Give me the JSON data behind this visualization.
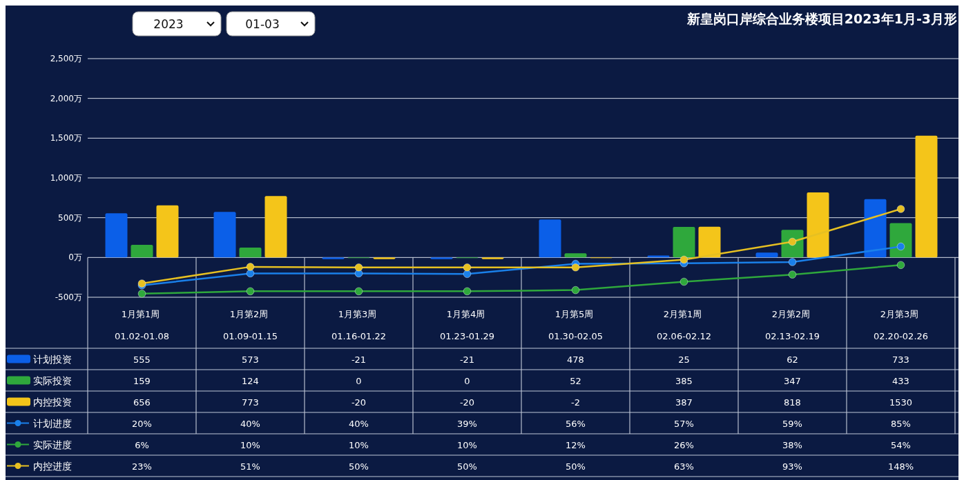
{
  "chart_data": {
    "type": "bar",
    "title": "新皇岗口岸综合业务楼项目2023年1月-3月形",
    "annotations": [
      "2023",
      "01-03"
    ],
    "categories": [
      "1月第1周\n01.02-01.08",
      "1月第2周\n01.09-01.15",
      "1月第3周\n01.16-01.22",
      "1月第4周\n01.23-01.29",
      "1月第5周\n01.30-02.05",
      "2月第1周\n02.06-02.12",
      "2月第2周\n02.13-02.19",
      "2月第3周\n02.20-02.26"
    ],
    "series": [
      {
        "name": "计划投资",
        "color": "#0b5fe8",
        "values": [
          555,
          573,
          -21,
          -21,
          478,
          25,
          62,
          733
        ],
        "value_labels": [
          "555",
          "573",
          "-21",
          "-21",
          "478",
          "25",
          "62",
          "733"
        ]
      },
      {
        "name": "实际投资",
        "color": "#2fa83c",
        "values": [
          159,
          124,
          0,
          0,
          52,
          385,
          347,
          433
        ],
        "value_labels": [
          "159",
          "124",
          "0",
          "0",
          "52",
          "385",
          "347",
          "433"
        ]
      },
      {
        "name": "内控投资",
        "color": "#f4c51a",
        "values": [
          656,
          773,
          -20,
          -20,
          -2,
          387,
          818,
          1530
        ],
        "value_labels": [
          "656",
          "773",
          "-20",
          "-20",
          "-2",
          "387",
          "818",
          "1530"
        ]
      },
      {
        "name": "计划进度",
        "type": "line",
        "axis": "y2",
        "color": "#1a80ea",
        "values": [
          20,
          40,
          40,
          39,
          56,
          57,
          59,
          85
        ],
        "value_labels": [
          "20%",
          "40%",
          "40%",
          "39%",
          "56%",
          "57%",
          "59%",
          "85%"
        ]
      },
      {
        "name": "实际进度",
        "type": "line",
        "axis": "y2",
        "color": "#2fa83c",
        "values": [
          6,
          10,
          10,
          10,
          12,
          26,
          38,
          54
        ],
        "value_labels": [
          "6%",
          "10%",
          "10%",
          "10%",
          "12%",
          "26%",
          "38%",
          "54%"
        ]
      },
      {
        "name": "内控进度",
        "type": "line",
        "axis": "y2",
        "color": "#e6c022",
        "values": [
          23,
          51,
          50,
          50,
          50,
          63,
          93,
          148
        ],
        "value_labels": [
          "23%",
          "51%",
          "50%",
          "50%",
          "50%",
          "63%",
          "93%",
          "148%"
        ]
      }
    ],
    "ylim": [
      -500,
      2500
    ],
    "yticks": [
      {
        "value": -500,
        "label": "-500万"
      },
      {
        "value": 0,
        "label": "0万"
      },
      {
        "value": 500,
        "label": "500万"
      },
      {
        "value": 1000,
        "label": "1,000万"
      },
      {
        "value": 1500,
        "label": "1,500万"
      },
      {
        "value": 2000,
        "label": "2,000万"
      },
      {
        "value": 2500,
        "label": "2,500万"
      }
    ],
    "y2lim": [
      0,
      400
    ],
    "grid": "y",
    "legend": "bottom left",
    "marker": "circle",
    "line_style": "solid"
  }
}
